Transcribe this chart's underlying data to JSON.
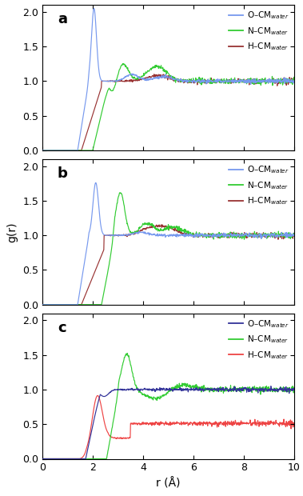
{
  "xlabel": "r (Å)",
  "ylabel": "g(r)",
  "xlim": [
    0,
    10
  ],
  "ylim": [
    0,
    2.1
  ],
  "yticks": [
    0,
    0.5,
    1.0,
    1.5,
    2.0
  ],
  "xticks": [
    0,
    2,
    4,
    6,
    8,
    10
  ],
  "panels": [
    "a",
    "b",
    "c"
  ],
  "panel_colors": {
    "a": {
      "O": "#7799ee",
      "N": "#33cc33",
      "H": "#993333"
    },
    "b": {
      "O": "#7799ee",
      "N": "#33cc33",
      "H": "#993333"
    },
    "c": {
      "O": "#333399",
      "N": "#33cc33",
      "H": "#ee4444"
    }
  },
  "legend_labels": {
    "O": "O–CM$_{water}$",
    "N": "N–CM$_{water}$",
    "H": "H–CM$_{water}$"
  },
  "noise_seed": 12345
}
